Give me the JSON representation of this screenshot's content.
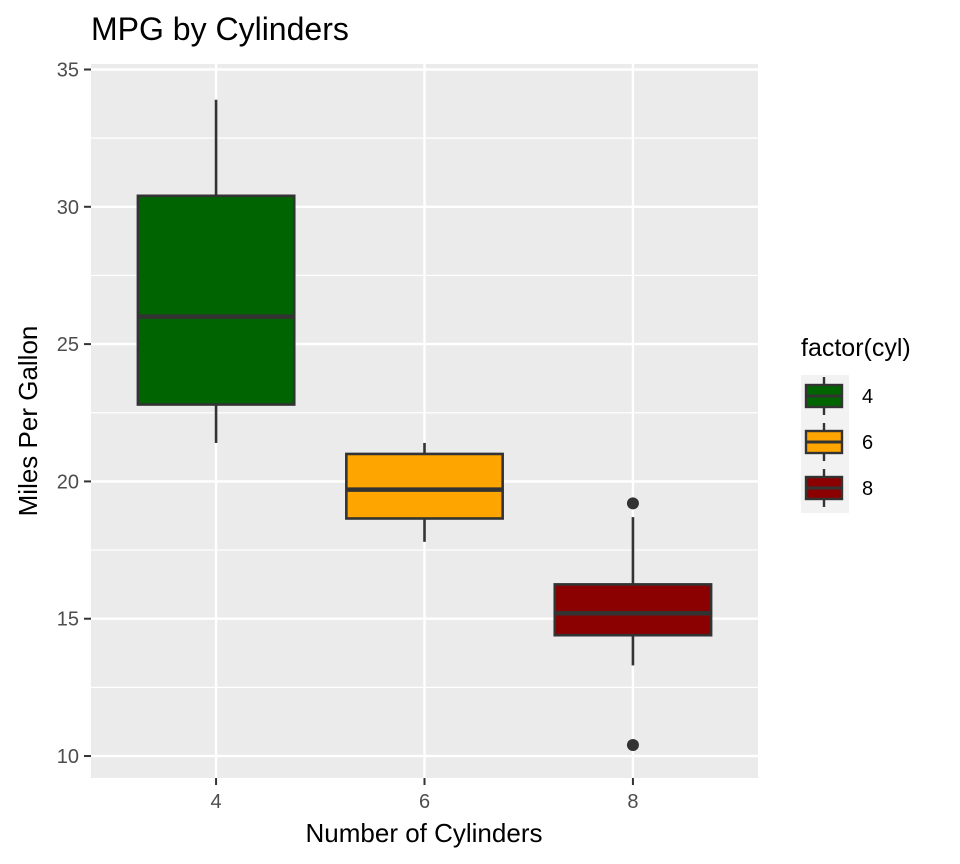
{
  "chart_data": {
    "type": "boxplot",
    "title": "MPG by Cylinders",
    "xlabel": "Number of Cylinders",
    "ylabel": "Miles Per Gallon",
    "categories": [
      "4",
      "6",
      "8"
    ],
    "ylim": [
      9.2,
      35.2
    ],
    "yticks": [
      10,
      15,
      20,
      25,
      30,
      35
    ],
    "grid": true,
    "panel_background": "#ebebeb",
    "legend": {
      "title": "factor(cyl)",
      "position": "right",
      "entries": [
        "4",
        "6",
        "8"
      ]
    },
    "series": [
      {
        "name": "4",
        "color": "#006400",
        "min": 21.4,
        "q1": 22.8,
        "median": 26.0,
        "q3": 30.4,
        "max": 33.9,
        "outliers": []
      },
      {
        "name": "6",
        "color": "#ffa500",
        "min": 17.8,
        "q1": 18.65,
        "median": 19.7,
        "q3": 21.0,
        "max": 21.4,
        "outliers": []
      },
      {
        "name": "8",
        "color": "#8b0000",
        "min": 13.3,
        "q1": 14.4,
        "median": 15.2,
        "q3": 16.25,
        "max": 18.7,
        "outliers": [
          19.2,
          10.4
        ]
      }
    ]
  }
}
